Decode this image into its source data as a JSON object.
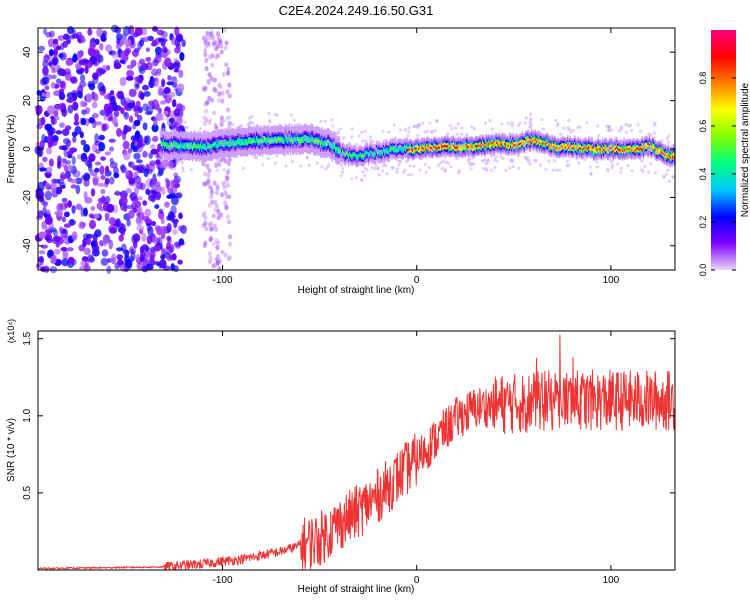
{
  "title": "C2E4.2024.249.16.50.G31",
  "chart_data": [
    {
      "type": "heatmap",
      "xlabel": "Height of straight line (km)",
      "ylabel": "Frequency (Hz)",
      "xlim": [
        -195,
        133
      ],
      "ylim": [
        -50,
        50
      ],
      "xticks": [
        -100,
        0,
        100
      ],
      "yticks": [
        -40,
        -20,
        0,
        20,
        40
      ],
      "colorbar": {
        "label": "Normalized spectral amplitude",
        "range": [
          0.0,
          1.0
        ],
        "ticks": [
          "0.0",
          "0.2",
          "0.4",
          "0.6",
          "0.8"
        ],
        "colors": [
          "#e8d8f8",
          "#8000ff",
          "#0000ff",
          "#00c8ff",
          "#00ff80",
          "#80ff00",
          "#ffff00",
          "#ff8000",
          "#ff0000",
          "#ff0080"
        ]
      },
      "ridge": {
        "description_x": [
          -130,
          -110,
          -90,
          -70,
          -55,
          -45,
          -38,
          -30,
          -20,
          -10,
          0,
          10,
          20,
          30,
          40,
          50,
          60,
          70,
          80,
          90,
          100,
          110,
          120,
          130
        ],
        "frequency_hz": [
          2,
          1,
          3,
          4,
          4,
          2,
          -2,
          -3,
          -1,
          0,
          0,
          1,
          1,
          1,
          2,
          2,
          4,
          1,
          1,
          0,
          0,
          0,
          1,
          -3
        ]
      }
    },
    {
      "type": "line",
      "xlabel": "Height of straight line (km)",
      "ylabel": "SNR (10 * v/v)",
      "yunit": "(x10⁴)",
      "xlim": [
        -195,
        133
      ],
      "ylim": [
        0,
        1.55
      ],
      "xticks": [
        -100,
        0,
        100
      ],
      "yticks": [
        "0.5",
        "1.0",
        "1.5"
      ],
      "series_color": "#ee3333",
      "trend_x": [
        -195,
        -160,
        -130,
        -110,
        -90,
        -70,
        -50,
        -40,
        -30,
        -20,
        -10,
        0,
        10,
        20,
        30,
        40,
        50,
        60,
        70,
        80,
        100,
        120,
        133
      ],
      "trend_y": [
        0.01,
        0.015,
        0.02,
        0.04,
        0.07,
        0.12,
        0.2,
        0.3,
        0.38,
        0.48,
        0.6,
        0.72,
        0.85,
        0.98,
        1.05,
        1.07,
        1.08,
        1.09,
        1.1,
        1.1,
        1.1,
        1.1,
        1.1
      ]
    }
  ]
}
